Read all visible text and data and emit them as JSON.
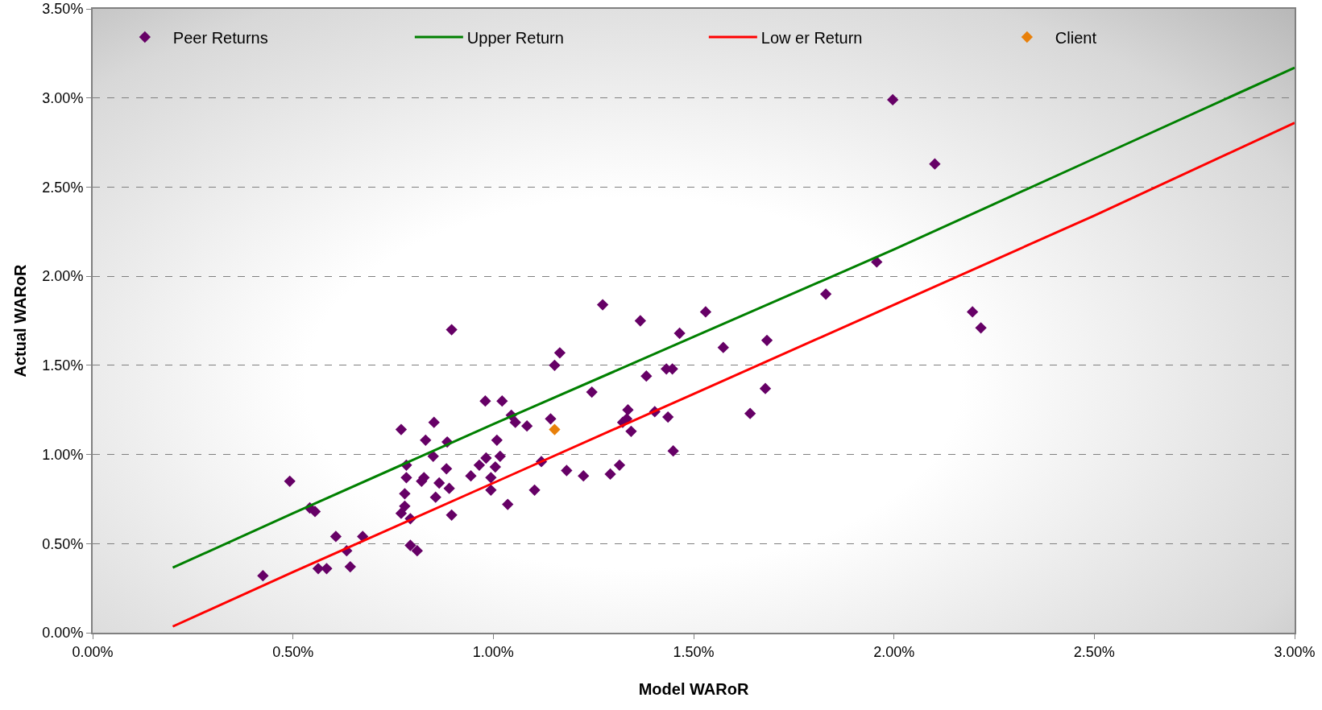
{
  "chart_data": {
    "type": "scatter",
    "xlabel": "Model WARoR",
    "ylabel": "Actual WARoR",
    "xlim": [
      0,
      3
    ],
    "ylim": [
      0,
      3.5
    ],
    "xticks": [
      {
        "value": 0,
        "label": "0.00%"
      },
      {
        "value": 0.5,
        "label": "0.50%"
      },
      {
        "value": 1,
        "label": "1.00%"
      },
      {
        "value": 1.5,
        "label": "1.50%"
      },
      {
        "value": 2,
        "label": "2.00%"
      },
      {
        "value": 2.5,
        "label": "2.50%"
      },
      {
        "value": 3,
        "label": "3.00%"
      }
    ],
    "yticks": [
      {
        "value": 0,
        "label": "0.00%"
      },
      {
        "value": 0.5,
        "label": "0.50%"
      },
      {
        "value": 1,
        "label": "1.00%"
      },
      {
        "value": 1.5,
        "label": "1.50%"
      },
      {
        "value": 2,
        "label": "2.00%"
      },
      {
        "value": 2.5,
        "label": "2.50%"
      },
      {
        "value": 3,
        "label": "3.00%"
      },
      {
        "value": 3.5,
        "label": "3.50%"
      }
    ],
    "grid": "y",
    "legend": "top left",
    "series": [
      {
        "name": "Peer Returns",
        "type": "scatter",
        "marker": "diamond",
        "color": "#660066",
        "x": [
          0.425,
          0.492,
          0.542,
          0.555,
          0.563,
          0.584,
          0.607,
          0.634,
          0.643,
          0.674,
          0.77,
          0.77,
          0.779,
          0.779,
          0.783,
          0.783,
          0.793,
          0.793,
          0.81,
          0.821,
          0.827,
          0.831,
          0.85,
          0.852,
          0.856,
          0.865,
          0.883,
          0.885,
          0.89,
          0.896,
          0.896,
          0.944,
          0.965,
          0.98,
          0.982,
          0.994,
          0.994,
          1.005,
          1.009,
          1.017,
          1.022,
          1.036,
          1.045,
          1.055,
          1.084,
          1.103,
          1.12,
          1.143,
          1.153,
          1.166,
          1.183,
          1.225,
          1.246,
          1.273,
          1.292,
          1.315,
          1.323,
          1.333,
          1.336,
          1.344,
          1.367,
          1.382,
          1.403,
          1.432,
          1.436,
          1.447,
          1.449,
          1.465,
          1.53,
          1.574,
          1.641,
          1.679,
          1.683,
          1.83,
          1.957,
          1.997,
          2.102,
          2.196,
          2.217
        ],
        "values": [
          0.32,
          0.85,
          0.7,
          0.68,
          0.36,
          0.36,
          0.54,
          0.46,
          0.37,
          0.54,
          1.14,
          0.67,
          0.71,
          0.78,
          0.87,
          0.94,
          0.64,
          0.49,
          0.46,
          0.85,
          0.87,
          1.08,
          0.99,
          1.18,
          0.76,
          0.84,
          0.92,
          1.07,
          0.81,
          1.7,
          0.66,
          0.88,
          0.94,
          1.3,
          0.98,
          0.87,
          0.8,
          0.93,
          1.08,
          0.99,
          1.3,
          0.72,
          1.22,
          1.18,
          1.16,
          0.8,
          0.96,
          1.2,
          1.5,
          1.57,
          0.91,
          0.88,
          1.35,
          1.84,
          0.89,
          0.94,
          1.18,
          1.2,
          1.25,
          1.13,
          1.75,
          1.44,
          1.24,
          1.48,
          1.21,
          1.48,
          1.02,
          1.68,
          1.8,
          1.6,
          1.23,
          1.37,
          1.64,
          1.9,
          2.08,
          2.99,
          2.63,
          1.8,
          1.71
        ]
      },
      {
        "name": "Upper Return",
        "type": "line",
        "marker": "none",
        "color": "#008000",
        "x": [
          0.2,
          0.5,
          1.0,
          1.5,
          2.0,
          2.5,
          3.0
        ],
        "values": [
          0.365,
          0.67,
          1.17,
          1.66,
          2.15,
          2.66,
          3.17
        ]
      },
      {
        "name": "Low er Return",
        "type": "line",
        "marker": "none",
        "color": "#ff0000",
        "x": [
          0.2,
          0.5,
          1.0,
          1.5,
          2.0,
          2.5,
          3.0
        ],
        "values": [
          0.035,
          0.34,
          0.84,
          1.34,
          1.84,
          2.34,
          2.86
        ]
      },
      {
        "name": "Client",
        "type": "scatter",
        "marker": "diamond",
        "color": "#e8800a",
        "x": [
          1.153
        ],
        "values": [
          1.14
        ]
      }
    ]
  }
}
